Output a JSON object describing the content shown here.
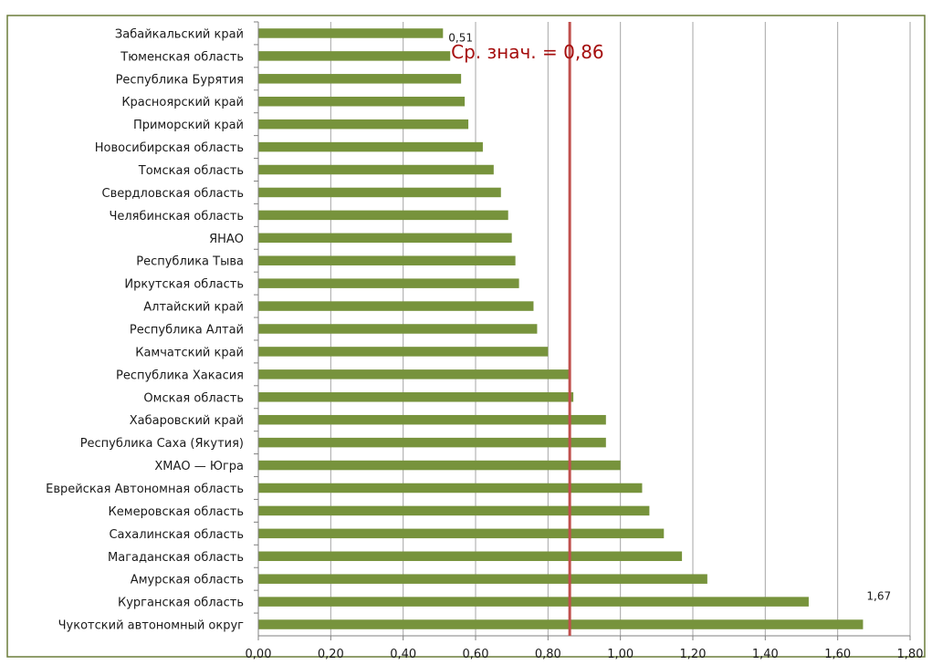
{
  "chart_data": {
    "type": "bar",
    "orientation": "horizontal",
    "categories": [
      "Забайкальский  край",
      "Тюменская область",
      "Республика Бурятия",
      "Красноярский край",
      "Приморский край",
      "Новосибирская область",
      "Томская область",
      "Свердловская область",
      "Челябинская область",
      "ЯНАО",
      "Республика Тыва",
      "Иркутская область",
      "Алтайский край",
      "Республика Алтай",
      "Камчатский край",
      "Республика Хакасия",
      "Омская область",
      "Хабаровский край",
      "Республика Саха (Якутия)",
      "ХМАО — Югра",
      "Еврейская Автономная область",
      "Кемеровская область",
      "Сахалинская область",
      "Магаданская область",
      "Амурская область",
      "Курганская область",
      "Чукотский автономный округ"
    ],
    "values": [
      0.51,
      0.53,
      0.56,
      0.57,
      0.58,
      0.62,
      0.65,
      0.67,
      0.69,
      0.7,
      0.71,
      0.72,
      0.76,
      0.77,
      0.8,
      0.86,
      0.87,
      0.96,
      0.96,
      1.0,
      1.06,
      1.08,
      1.12,
      1.17,
      1.24,
      1.52,
      1.67
    ],
    "data_labels": [
      {
        "index": 0,
        "text": "0,51"
      },
      {
        "index": 26,
        "text": "1,67"
      }
    ],
    "xlim": [
      0,
      1.8
    ],
    "x_ticks": [
      "0,00",
      "0,20",
      "0,40",
      "0,60",
      "0,80",
      "1,00",
      "1,20",
      "1,40",
      "1,60",
      "1,80"
    ],
    "grid": "vertical",
    "mean_line": {
      "value": 0.86,
      "label": "Ср. знач. = 0,86"
    },
    "title": "",
    "xlabel": "",
    "ylabel": ""
  },
  "colors": {
    "bar": "#77933c",
    "grid": "#a6a6a6",
    "axis": "#808080",
    "mean_line": "#c0504d",
    "mean_text": "#a50d0d",
    "frame": "#6b7d3a"
  }
}
